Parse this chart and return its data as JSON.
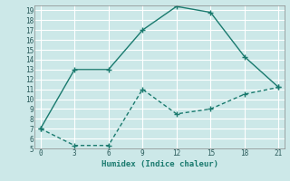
{
  "xlabel": "Humidex (Indice chaleur)",
  "bg_color": "#cce8e8",
  "grid_color": "#ffffff",
  "line_color": "#1a7a6e",
  "xlim": [
    -0.5,
    21.5
  ],
  "ylim": [
    5,
    19.5
  ],
  "xticks": [
    0,
    3,
    6,
    9,
    12,
    15,
    18,
    21
  ],
  "yticks": [
    5,
    6,
    7,
    8,
    9,
    10,
    11,
    12,
    13,
    14,
    15,
    16,
    17,
    18,
    19
  ],
  "upper_x": [
    0,
    3,
    6,
    9,
    12,
    15,
    18,
    21
  ],
  "upper_y": [
    7,
    13,
    13,
    17,
    19.4,
    18.8,
    14.3,
    11.2
  ],
  "lower_x": [
    0,
    3,
    6,
    9,
    12,
    15,
    18,
    21
  ],
  "lower_y": [
    7,
    5.3,
    5.3,
    11,
    8.5,
    9.0,
    10.5,
    11.2
  ]
}
